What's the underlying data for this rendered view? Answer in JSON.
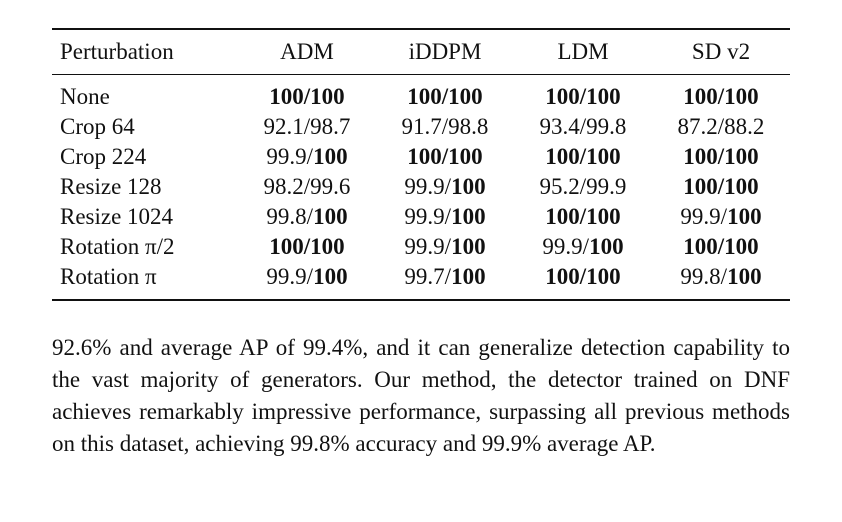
{
  "table": {
    "columns": [
      "Perturbation",
      "ADM",
      "iDDPM",
      "LDM",
      "SD v2"
    ],
    "rows": [
      {
        "label": "None",
        "cells": [
          {
            "pre": "",
            "bold": "100/100"
          },
          {
            "pre": "",
            "bold": "100/100"
          },
          {
            "pre": "",
            "bold": "100/100"
          },
          {
            "pre": "",
            "bold": "100/100"
          }
        ]
      },
      {
        "label": "Crop 64",
        "cells": [
          {
            "pre": "92.1/98.7",
            "bold": ""
          },
          {
            "pre": "91.7/98.8",
            "bold": ""
          },
          {
            "pre": "93.4/99.8",
            "bold": ""
          },
          {
            "pre": "87.2/88.2",
            "bold": ""
          }
        ]
      },
      {
        "label": "Crop 224",
        "cells": [
          {
            "pre": "99.9/",
            "bold": "100"
          },
          {
            "pre": "",
            "bold": "100/100"
          },
          {
            "pre": "",
            "bold": "100/100"
          },
          {
            "pre": "",
            "bold": "100/100"
          }
        ]
      },
      {
        "label": "Resize 128",
        "cells": [
          {
            "pre": "98.2/99.6",
            "bold": ""
          },
          {
            "pre": "99.9/",
            "bold": "100"
          },
          {
            "pre": "95.2/99.9",
            "bold": ""
          },
          {
            "pre": "",
            "bold": "100/100"
          }
        ]
      },
      {
        "label": "Resize 1024",
        "cells": [
          {
            "pre": "99.8/",
            "bold": "100"
          },
          {
            "pre": "99.9/",
            "bold": "100"
          },
          {
            "pre": "",
            "bold": "100/100"
          },
          {
            "pre": "99.9/",
            "bold": "100"
          }
        ]
      },
      {
        "label": "Rotation π/2",
        "cells": [
          {
            "pre": "",
            "bold": "100/100"
          },
          {
            "pre": "99.9/",
            "bold": "100"
          },
          {
            "pre": "99.9/",
            "bold": "100"
          },
          {
            "pre": "",
            "bold": "100/100"
          }
        ]
      },
      {
        "label": "Rotation π",
        "cells": [
          {
            "pre": "99.9/",
            "bold": "100"
          },
          {
            "pre": "99.7/",
            "bold": "100"
          },
          {
            "pre": "",
            "bold": "100/100"
          },
          {
            "pre": "99.8/",
            "bold": "100"
          }
        ]
      }
    ]
  },
  "paragraph": "92.6% and average AP of 99.4%, and it can generalize detection capability to the vast majority of generators. Our method, the detector trained on DNF achieves remarkably impressive performance, surpassing all previous methods on this dataset, achieving 99.8% accuracy and 99.9% average AP."
}
